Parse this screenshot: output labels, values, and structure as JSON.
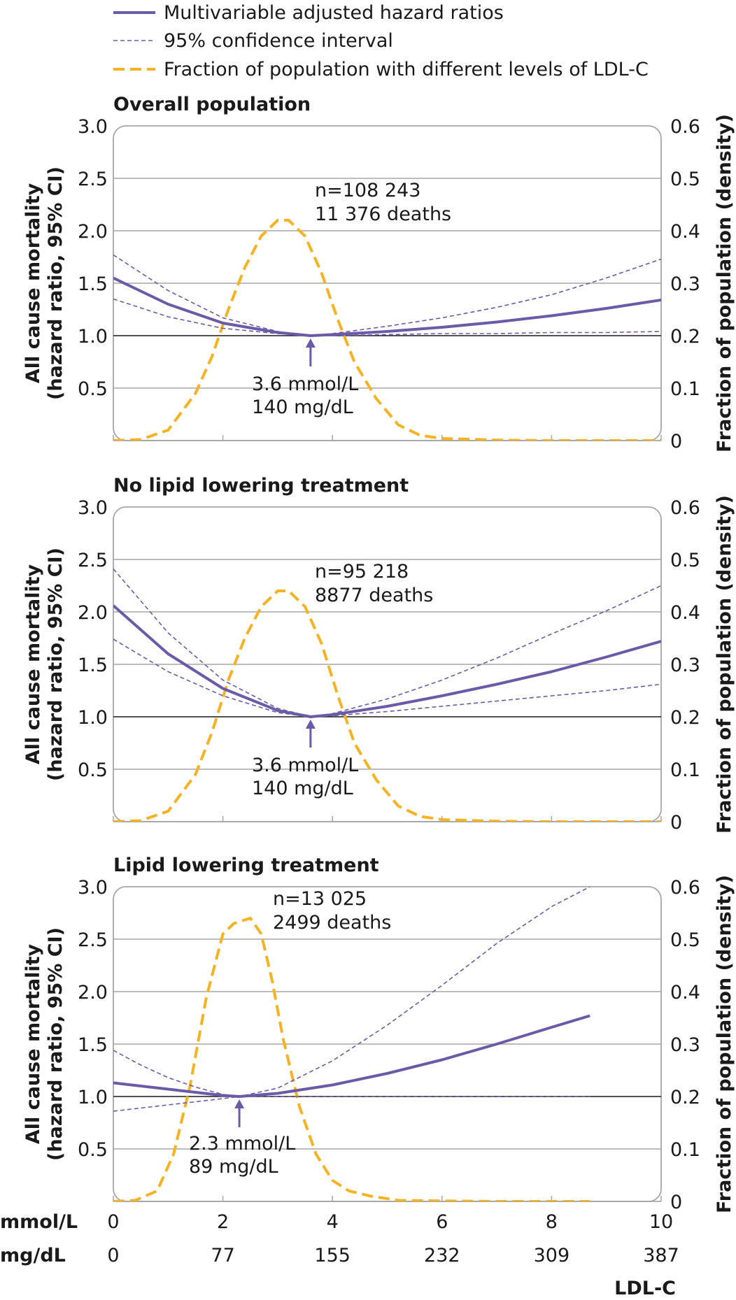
{
  "legend": [
    {
      "label": "Multivariable adjusted hazard ratios",
      "style": "solid",
      "color": "#6a5aa8"
    },
    {
      "label": "95% confidence interval",
      "style": "dashed-thin",
      "color": "#6a5aa8"
    },
    {
      "label": "Fraction of population with different levels of LDL-C",
      "style": "dashed-thick",
      "color": "#f5b324"
    }
  ],
  "colors": {
    "hr": "#6a5aa8",
    "density": "#f5b324",
    "grid": "#a6a6a6",
    "reference": "#1a1a1a"
  },
  "axes": {
    "left_ticks": [
      "3.0",
      "2.5",
      "2.0",
      "1.5",
      "1.0",
      "0.5"
    ],
    "right_ticks": [
      "0.6",
      "0.5",
      "0.4",
      "0.3",
      "0.2",
      "0.1",
      "0"
    ],
    "left_title_line1": "All cause mortality",
    "left_title_line2": "(hazard ratio, 95% CI)",
    "right_title": "Fraction of population (density)",
    "x_unit1": "mmol/L",
    "x_unit2": "mg/dL",
    "x_ticks_mmol": [
      "0",
      "2",
      "4",
      "6",
      "8",
      "10"
    ],
    "x_ticks_mgdl": [
      "0",
      "77",
      "155",
      "232",
      "309",
      "387"
    ],
    "x_title": "LDL-C"
  },
  "chart_data": [
    {
      "type": "line",
      "title": "Overall population",
      "xlim": [
        0,
        10
      ],
      "ylim": [
        0,
        3
      ],
      "y2lim": [
        0,
        0.6
      ],
      "n_text": "n=108 243",
      "deaths_text": "11 376 deaths",
      "nadir_mmol": 3.6,
      "nadir_text1": "3.6 mmol/L",
      "nadir_text2": "140 mg/dL",
      "hr": {
        "x": [
          0,
          1,
          2,
          3,
          3.6,
          4,
          5,
          6,
          7,
          8,
          9,
          10
        ],
        "y": [
          1.55,
          1.3,
          1.12,
          1.03,
          1.0,
          1.01,
          1.04,
          1.08,
          1.13,
          1.19,
          1.26,
          1.34
        ]
      },
      "ci_upper": {
        "x": [
          0,
          1,
          2,
          3,
          3.6,
          4,
          5,
          6,
          7,
          8,
          9,
          10
        ],
        "y": [
          1.77,
          1.43,
          1.17,
          1.04,
          1.0,
          1.02,
          1.09,
          1.17,
          1.27,
          1.39,
          1.55,
          1.73
        ]
      },
      "ci_lower": {
        "x": [
          0,
          1,
          2,
          3,
          3.6,
          4,
          5,
          6,
          7,
          8,
          9,
          10
        ],
        "y": [
          1.35,
          1.18,
          1.07,
          1.02,
          1.0,
          1.0,
          1.01,
          1.02,
          1.02,
          1.03,
          1.03,
          1.04
        ]
      },
      "density": {
        "x": [
          0,
          0.5,
          1,
          1.5,
          1.8,
          2.1,
          2.4,
          2.7,
          3.0,
          3.2,
          3.5,
          3.8,
          4.1,
          4.4,
          4.8,
          5.2,
          5.6,
          6,
          7,
          8,
          9,
          10
        ],
        "y": [
          0,
          0.002,
          0.02,
          0.09,
          0.16,
          0.25,
          0.33,
          0.39,
          0.42,
          0.42,
          0.39,
          0.32,
          0.23,
          0.15,
          0.08,
          0.03,
          0.01,
          0.004,
          0.001,
          0,
          0,
          0
        ]
      }
    },
    {
      "type": "line",
      "title": "No lipid lowering treatment",
      "xlim": [
        0,
        10
      ],
      "ylim": [
        0,
        3
      ],
      "y2lim": [
        0,
        0.6
      ],
      "n_text": "n=95 218",
      "deaths_text": "8877 deaths",
      "nadir_mmol": 3.6,
      "nadir_text1": "3.6 mmol/L",
      "nadir_text2": "140 mg/dL",
      "hr": {
        "x": [
          0,
          1,
          2,
          3,
          3.6,
          4,
          5,
          6,
          7,
          8,
          9,
          10
        ],
        "y": [
          2.06,
          1.6,
          1.27,
          1.06,
          1.0,
          1.02,
          1.1,
          1.2,
          1.31,
          1.43,
          1.57,
          1.72
        ]
      },
      "ci_upper": {
        "x": [
          0,
          1,
          2,
          3,
          3.6,
          4,
          5,
          6,
          7,
          8,
          9,
          10
        ],
        "y": [
          2.41,
          1.8,
          1.35,
          1.08,
          1.0,
          1.03,
          1.17,
          1.35,
          1.56,
          1.79,
          2.01,
          2.25
        ]
      },
      "ci_lower": {
        "x": [
          0,
          1,
          2,
          3,
          3.6,
          4,
          5,
          6,
          7,
          8,
          9,
          10
        ],
        "y": [
          1.74,
          1.43,
          1.2,
          1.04,
          1.0,
          1.01,
          1.05,
          1.1,
          1.15,
          1.2,
          1.25,
          1.31
        ]
      },
      "density": {
        "x": [
          0,
          0.5,
          1,
          1.5,
          1.8,
          2.1,
          2.4,
          2.7,
          3.0,
          3.2,
          3.5,
          3.8,
          4.1,
          4.4,
          4.8,
          5.2,
          5.6,
          6,
          7,
          8,
          9,
          10
        ],
        "y": [
          0,
          0.002,
          0.02,
          0.09,
          0.17,
          0.27,
          0.35,
          0.41,
          0.44,
          0.44,
          0.41,
          0.34,
          0.24,
          0.15,
          0.08,
          0.03,
          0.01,
          0.004,
          0.001,
          0,
          0,
          0
        ]
      }
    },
    {
      "type": "line",
      "title": "Lipid lowering treatment",
      "xlim": [
        0,
        10
      ],
      "ylim": [
        0,
        3
      ],
      "y2lim": [
        0,
        0.6
      ],
      "n_text": "n=13 025",
      "deaths_text": "2499 deaths",
      "nadir_mmol": 2.3,
      "nadir_text1": "2.3 mmol/L",
      "nadir_text2": "89 mg/dL",
      "hr": {
        "x": [
          0,
          0.5,
          1,
          1.5,
          2,
          2.3,
          3,
          4,
          5,
          6,
          7,
          8,
          8.7
        ],
        "y": [
          1.13,
          1.1,
          1.07,
          1.04,
          1.01,
          1.0,
          1.03,
          1.11,
          1.22,
          1.35,
          1.5,
          1.66,
          1.77
        ]
      },
      "ci_upper": {
        "x": [
          0,
          0.5,
          1,
          1.5,
          2,
          2.3,
          3,
          4,
          5,
          6,
          7,
          8,
          8.7
        ],
        "y": [
          1.44,
          1.3,
          1.18,
          1.09,
          1.02,
          1.0,
          1.08,
          1.34,
          1.68,
          2.06,
          2.46,
          2.81,
          3.0
        ]
      },
      "ci_lower": {
        "x": [
          0,
          0.5,
          1,
          1.5,
          2,
          2.3,
          3,
          4,
          5,
          6,
          7,
          8,
          8.7
        ],
        "y": [
          0.86,
          0.89,
          0.92,
          0.95,
          0.98,
          1.0,
          1.0,
          1.0,
          1.0,
          1.0,
          1.0,
          1.0,
          1.0
        ]
      },
      "density": {
        "x": [
          0,
          0.4,
          0.8,
          1.1,
          1.4,
          1.7,
          2.0,
          2.2,
          2.5,
          2.7,
          2.9,
          3.1,
          3.4,
          3.7,
          4.0,
          4.3,
          4.7,
          5.2,
          6,
          7,
          8,
          8.7
        ],
        "y": [
          0,
          0.002,
          0.02,
          0.09,
          0.22,
          0.39,
          0.51,
          0.53,
          0.54,
          0.51,
          0.42,
          0.31,
          0.18,
          0.09,
          0.04,
          0.02,
          0.01,
          0.002,
          0.001,
          0,
          0,
          0
        ]
      }
    }
  ]
}
